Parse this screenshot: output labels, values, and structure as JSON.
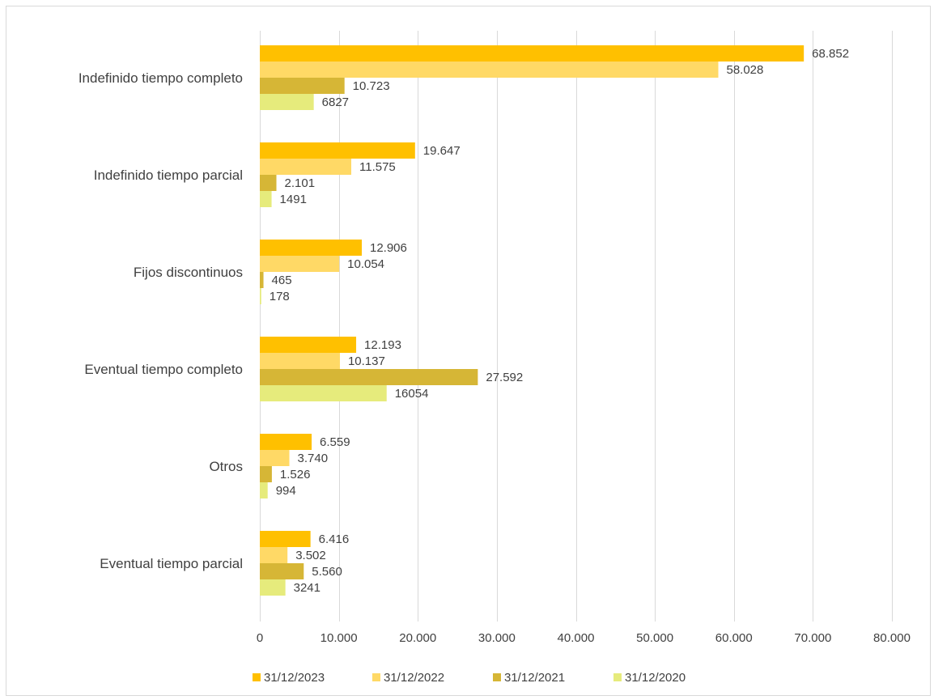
{
  "chart_data": {
    "type": "bar",
    "orientation": "horizontal",
    "categories": [
      "Indefinido tiempo completo",
      "Indefinido tiempo parcial",
      "Fijos discontinuos",
      "Eventual tiempo completo",
      "Otros",
      "Eventual tiempo parcial"
    ],
    "series": [
      {
        "name": "31/12/2023",
        "color": "#ffc000",
        "values": [
          68852,
          19647,
          12906,
          12193,
          6559,
          6416
        ],
        "labels": [
          "68.852",
          "19.647",
          "12.906",
          "12.193",
          "6.559",
          "6.416"
        ]
      },
      {
        "name": "31/12/2022",
        "color": "#ffd966",
        "values": [
          58028,
          11575,
          10054,
          10137,
          3740,
          3502
        ],
        "labels": [
          "58.028",
          "11.575",
          "10.054",
          "10.137",
          "3.740",
          "3.502"
        ]
      },
      {
        "name": "31/12/2021",
        "color": "#d6b636",
        "values": [
          10723,
          2101,
          465,
          27592,
          1526,
          5560
        ],
        "labels": [
          "10.723",
          "2.101",
          "465",
          "27.592",
          "1.526",
          "5.560"
        ]
      },
      {
        "name": "31/12/2020",
        "color": "#e6eb7c",
        "values": [
          6827,
          1491,
          178,
          16054,
          994,
          3241
        ],
        "labels": [
          "6827",
          "1491",
          "178",
          "16054",
          "994",
          "3241"
        ]
      }
    ],
    "xlim": [
      0,
      80000
    ],
    "xticks": [
      0,
      10000,
      20000,
      30000,
      40000,
      50000,
      60000,
      70000,
      80000
    ],
    "xtick_labels": [
      "0",
      "10.000",
      "20.000",
      "30.000",
      "40.000",
      "50.000",
      "60.000",
      "70.000",
      "80.000"
    ],
    "grid": true,
    "legend_position": "bottom"
  }
}
